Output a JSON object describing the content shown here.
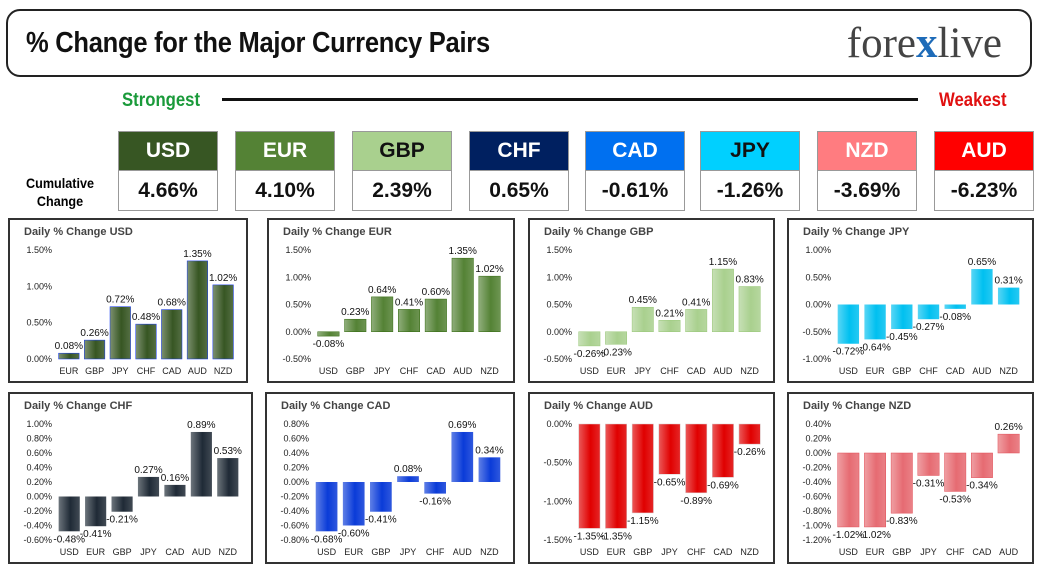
{
  "header": {
    "title": "% Change for the Major Currency Pairs",
    "logo_left": "fore",
    "logo_x": "x",
    "logo_right": "live"
  },
  "scale": {
    "strongest": "Strongest",
    "weakest": "Weakest",
    "cumulative_label_1": "Cumulative",
    "cumulative_label_2": "Change"
  },
  "currencies": [
    {
      "code": "USD",
      "value": "4.66%",
      "bg": "#375623",
      "fg": "#ffffff"
    },
    {
      "code": "EUR",
      "value": "4.10%",
      "bg": "#548235",
      "fg": "#ffffff"
    },
    {
      "code": "GBP",
      "value": "2.39%",
      "bg": "#a9d08e",
      "fg": "#111111"
    },
    {
      "code": "CHF",
      "value": "0.65%",
      "bg": "#002060",
      "fg": "#ffffff"
    },
    {
      "code": "CAD",
      "value": "-0.61%",
      "bg": "#0070f0",
      "fg": "#ffffff"
    },
    {
      "code": "JPY",
      "value": "-1.26%",
      "bg": "#00d0ff",
      "fg": "#111111"
    },
    {
      "code": "NZD",
      "value": "-3.69%",
      "bg": "#ff7c80",
      "fg": "#ffffff"
    },
    {
      "code": "AUD",
      "value": "-6.23%",
      "bg": "#ff0000",
      "fg": "#ffffff"
    }
  ],
  "chart_data": [
    {
      "type": "bar",
      "title": "Daily % Change USD",
      "categories": [
        "EUR",
        "GBP",
        "JPY",
        "CHF",
        "CAD",
        "AUD",
        "NZD"
      ],
      "values": [
        0.08,
        0.26,
        0.72,
        0.48,
        0.68,
        1.35,
        1.02
      ],
      "labels": [
        "0.08%",
        "0.26%",
        "0.72%",
        "0.48%",
        "0.68%",
        "1.35%",
        "1.02%"
      ],
      "ylim": [
        0,
        1.5
      ],
      "ticks": [
        0,
        0.5,
        1.0,
        1.5
      ],
      "tick_labels": [
        "0.00%",
        "0.50%",
        "1.00%",
        "1.50%"
      ],
      "color": "#375623"
    },
    {
      "type": "bar",
      "title": "Daily % Change EUR",
      "categories": [
        "USD",
        "GBP",
        "JPY",
        "CHF",
        "CAD",
        "AUD",
        "NZD"
      ],
      "values": [
        -0.08,
        0.23,
        0.64,
        0.41,
        0.6,
        1.35,
        1.02
      ],
      "labels": [
        "-0.08%",
        "0.23%",
        "0.64%",
        "0.41%",
        "0.60%",
        "1.35%",
        "1.02%"
      ],
      "ylim": [
        -0.5,
        1.5
      ],
      "ticks": [
        -0.5,
        0,
        0.5,
        1.0,
        1.5
      ],
      "tick_labels": [
        "-0.50%",
        "0.00%",
        "0.50%",
        "1.00%",
        "1.50%"
      ],
      "color": "#548235"
    },
    {
      "type": "bar",
      "title": "Daily % Change GBP",
      "categories": [
        "USD",
        "EUR",
        "JPY",
        "CHF",
        "CAD",
        "AUD",
        "NZD"
      ],
      "values": [
        -0.26,
        -0.23,
        0.45,
        0.21,
        0.41,
        1.15,
        0.83
      ],
      "labels": [
        "-0.26%",
        "-0.23%",
        "0.45%",
        "0.21%",
        "0.41%",
        "1.15%",
        "0.83%"
      ],
      "ylim": [
        -0.5,
        1.5
      ],
      "ticks": [
        -0.5,
        0,
        0.5,
        1.0,
        1.5
      ],
      "tick_labels": [
        "-0.50%",
        "0.00%",
        "0.50%",
        "1.00%",
        "1.50%"
      ],
      "color": "#a9d08e"
    },
    {
      "type": "bar",
      "title": "Daily % Change JPY",
      "categories": [
        "USD",
        "EUR",
        "GBP",
        "CHF",
        "CAD",
        "AUD",
        "NZD"
      ],
      "values": [
        -0.72,
        -0.64,
        -0.45,
        -0.27,
        -0.08,
        0.65,
        0.31
      ],
      "labels": [
        "-0.72%",
        "-0.64%",
        "-0.45%",
        "-0.27%",
        "-0.08%",
        "0.65%",
        "0.31%"
      ],
      "ylim": [
        -1.0,
        1.0
      ],
      "ticks": [
        -1.0,
        -0.5,
        0,
        0.5,
        1.0
      ],
      "tick_labels": [
        "-1.00%",
        "-0.50%",
        "0.00%",
        "0.50%",
        "1.00%"
      ],
      "color": "#00c0f0"
    },
    {
      "type": "bar",
      "title": "Daily % Change CHF",
      "categories": [
        "USD",
        "EUR",
        "GBP",
        "JPY",
        "CAD",
        "AUD",
        "NZD"
      ],
      "values": [
        -0.48,
        -0.41,
        -0.21,
        0.27,
        0.16,
        0.89,
        0.53
      ],
      "labels": [
        "-0.48%",
        "-0.41%",
        "-0.21%",
        "0.27%",
        "0.16%",
        "0.89%",
        "0.53%"
      ],
      "ylim": [
        -0.6,
        1.0
      ],
      "ticks": [
        -0.6,
        -0.4,
        -0.2,
        0,
        0.2,
        0.4,
        0.6,
        0.8,
        1.0
      ],
      "tick_labels": [
        "-0.60%",
        "-0.40%",
        "-0.20%",
        "0.00%",
        "0.20%",
        "0.40%",
        "0.60%",
        "0.80%",
        "1.00%"
      ],
      "color": "#1f2a36"
    },
    {
      "type": "bar",
      "title": "Daily % Change CAD",
      "categories": [
        "USD",
        "EUR",
        "GBP",
        "JPY",
        "CHF",
        "AUD",
        "NZD"
      ],
      "values": [
        -0.68,
        -0.6,
        -0.41,
        0.08,
        -0.16,
        0.69,
        0.34
      ],
      "labels": [
        "-0.68%",
        "-0.60%",
        "-0.41%",
        "0.08%",
        "-0.16%",
        "0.69%",
        "0.34%"
      ],
      "ylim": [
        -0.8,
        0.8
      ],
      "ticks": [
        -0.8,
        -0.6,
        -0.4,
        -0.2,
        0,
        0.2,
        0.4,
        0.6,
        0.8
      ],
      "tick_labels": [
        "-0.80%",
        "-0.60%",
        "-0.40%",
        "-0.20%",
        "0.00%",
        "0.20%",
        "0.40%",
        "0.60%",
        "0.80%"
      ],
      "color": "#0a3bd8"
    },
    {
      "type": "bar",
      "title": "Daily % Change AUD",
      "categories": [
        "USD",
        "EUR",
        "GBP",
        "JPY",
        "CHF",
        "CAD",
        "NZD"
      ],
      "values": [
        -1.35,
        -1.35,
        -1.15,
        -0.65,
        -0.89,
        -0.69,
        -0.26
      ],
      "labels": [
        "-1.35%",
        "-1.35%",
        "-1.15%",
        "-0.65%",
        "-0.89%",
        "-0.69%",
        "-0.26%"
      ],
      "ylim": [
        -1.5,
        0
      ],
      "ticks": [
        -1.5,
        -1.0,
        -0.5,
        0
      ],
      "tick_labels": [
        "-1.50%",
        "-1.00%",
        "-0.50%",
        "0.00%"
      ],
      "color": "#e00000"
    },
    {
      "type": "bar",
      "title": "Daily % Change NZD",
      "categories": [
        "USD",
        "EUR",
        "GBP",
        "JPY",
        "CHF",
        "CAD",
        "AUD"
      ],
      "values": [
        -1.02,
        -1.02,
        -0.83,
        -0.31,
        -0.53,
        -0.34,
        0.26
      ],
      "labels": [
        "-1.02%",
        "-1.02%",
        "-0.83%",
        "-0.31%",
        "-0.53%",
        "-0.34%",
        "0.26%"
      ],
      "ylim": [
        -1.2,
        0.4
      ],
      "ticks": [
        -1.2,
        -1.0,
        -0.8,
        -0.6,
        -0.4,
        -0.2,
        0,
        0.2,
        0.4
      ],
      "tick_labels": [
        "-1.20%",
        "-1.00%",
        "-0.80%",
        "-0.60%",
        "-0.40%",
        "-0.20%",
        "0.00%",
        "0.20%",
        "0.40%"
      ],
      "color": "#e66b72"
    }
  ]
}
